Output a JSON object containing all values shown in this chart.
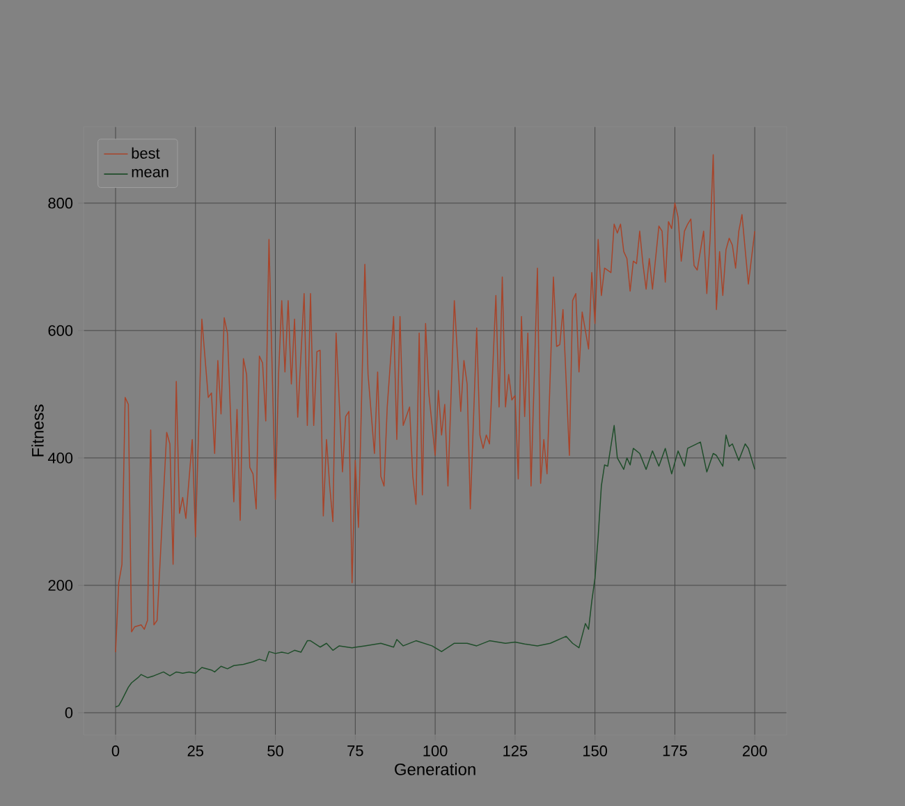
{
  "chart_data": {
    "type": "line",
    "xlabel": "Generation",
    "ylabel": "Fitness",
    "xlim": [
      -10,
      210
    ],
    "ylim": [
      -35,
      920
    ],
    "xticks": [
      0,
      25,
      50,
      75,
      100,
      125,
      150,
      175,
      200
    ],
    "yticks": [
      0,
      200,
      400,
      600,
      800
    ],
    "grid": true,
    "legend": "top left",
    "marker": "none",
    "line_style": "solid",
    "series": [
      {
        "name": "best",
        "color": "#a8442a",
        "x": [
          0,
          1,
          2,
          3,
          4,
          5,
          6,
          8,
          9,
          10,
          11,
          12,
          13,
          16,
          17,
          18,
          19,
          20,
          21,
          22,
          24,
          25,
          27,
          29,
          30,
          31,
          32,
          33,
          34,
          35,
          37,
          38,
          39,
          40,
          41,
          42,
          43,
          44,
          45,
          46,
          47,
          48,
          50,
          51,
          52,
          53,
          54,
          55,
          56,
          57,
          59,
          60,
          61,
          62,
          63,
          64,
          65,
          66,
          67,
          68,
          69,
          71,
          72,
          73,
          74,
          75,
          76,
          78,
          79,
          81,
          82,
          83,
          84,
          85,
          87,
          88,
          89,
          90,
          92,
          93,
          94,
          95,
          96,
          97,
          98,
          100,
          101,
          102,
          103,
          104,
          106,
          108,
          109,
          110,
          111,
          113,
          114,
          115,
          116,
          117,
          119,
          120,
          121,
          122,
          123,
          124,
          125,
          126,
          127,
          128,
          129,
          130,
          132,
          133,
          134,
          135,
          137,
          138,
          139,
          140,
          142,
          143,
          144,
          145,
          146,
          148,
          149,
          150,
          151,
          152,
          153,
          155,
          156,
          157,
          158,
          159,
          160,
          161,
          162,
          163,
          164,
          165,
          166,
          167,
          168,
          170,
          171,
          172,
          173,
          174,
          175,
          176,
          177,
          178,
          179,
          180,
          181,
          182,
          184,
          185,
          186,
          187,
          188,
          189,
          190,
          191,
          192,
          193,
          194,
          195,
          196,
          197,
          198,
          200
        ],
        "values": [
          95,
          204,
          233,
          495,
          484,
          127,
          135,
          138,
          131,
          145,
          444,
          138,
          145,
          440,
          422,
          233,
          520,
          313,
          338,
          305,
          429,
          276,
          618,
          495,
          502,
          407,
          553,
          469,
          620,
          596,
          331,
          476,
          302,
          556,
          531,
          385,
          375,
          320,
          560,
          549,
          458,
          743,
          335,
          531,
          647,
          535,
          647,
          516,
          618,
          464,
          658,
          451,
          658,
          451,
          567,
          569,
          309,
          429,
          356,
          300,
          596,
          378,
          465,
          473,
          204,
          396,
          291,
          704,
          531,
          407,
          535,
          371,
          356,
          480,
          622,
          429,
          622,
          451,
          480,
          371,
          327,
          596,
          342,
          611,
          502,
          404,
          506,
          436,
          484,
          356,
          647,
          473,
          553,
          516,
          320,
          604,
          436,
          415,
          436,
          422,
          655,
          480,
          684,
          480,
          531,
          491,
          498,
          367,
          622,
          465,
          596,
          356,
          698,
          360,
          429,
          375,
          684,
          575,
          578,
          633,
          404,
          647,
          658,
          535,
          629,
          571,
          691,
          611,
          743,
          655,
          698,
          691,
          767,
          753,
          767,
          724,
          713,
          662,
          709,
          705,
          756,
          705,
          665,
          713,
          665,
          764,
          756,
          676,
          771,
          760,
          800,
          778,
          709,
          756,
          767,
          775,
          702,
          695,
          756,
          658,
          742,
          876,
          633,
          724,
          655,
          727,
          745,
          734,
          698,
          756,
          782,
          727,
          673,
          756
        ]
      },
      {
        "name": "mean",
        "color": "#1f4d2a",
        "x": [
          0,
          1,
          2,
          4,
          5,
          7,
          8,
          10,
          12,
          15,
          17,
          19,
          21,
          23,
          25,
          27,
          30,
          31,
          33,
          35,
          37,
          40,
          43,
          45,
          47,
          48,
          50,
          52,
          54,
          56,
          58,
          60,
          61,
          64,
          66,
          68,
          70,
          74,
          78,
          83,
          87,
          88,
          90,
          94,
          99,
          102,
          106,
          110,
          113,
          117,
          122,
          125,
          128,
          132,
          136,
          141,
          143,
          145,
          147,
          148,
          149,
          150,
          151,
          152,
          153,
          154,
          156,
          157,
          159,
          160,
          161,
          162,
          164,
          166,
          168,
          170,
          172,
          174,
          176,
          178,
          179,
          183,
          185,
          187,
          188,
          190,
          191,
          192,
          193,
          195,
          197,
          198,
          200
        ],
        "values": [
          9,
          11,
          20,
          40,
          47,
          55,
          60,
          55,
          58,
          64,
          58,
          64,
          62,
          64,
          62,
          71,
          67,
          64,
          73,
          69,
          74,
          76,
          80,
          84,
          81,
          96,
          93,
          95,
          93,
          98,
          95,
          113,
          113,
          103,
          109,
          98,
          105,
          102,
          105,
          109,
          103,
          115,
          105,
          113,
          105,
          96,
          109,
          109,
          105,
          113,
          109,
          111,
          108,
          105,
          109,
          120,
          109,
          102,
          140,
          131,
          175,
          211,
          276,
          356,
          389,
          387,
          451,
          400,
          382,
          400,
          389,
          415,
          407,
          382,
          411,
          387,
          415,
          375,
          411,
          387,
          415,
          425,
          378,
          407,
          404,
          387,
          436,
          418,
          422,
          396,
          422,
          415,
          382
        ]
      }
    ]
  }
}
